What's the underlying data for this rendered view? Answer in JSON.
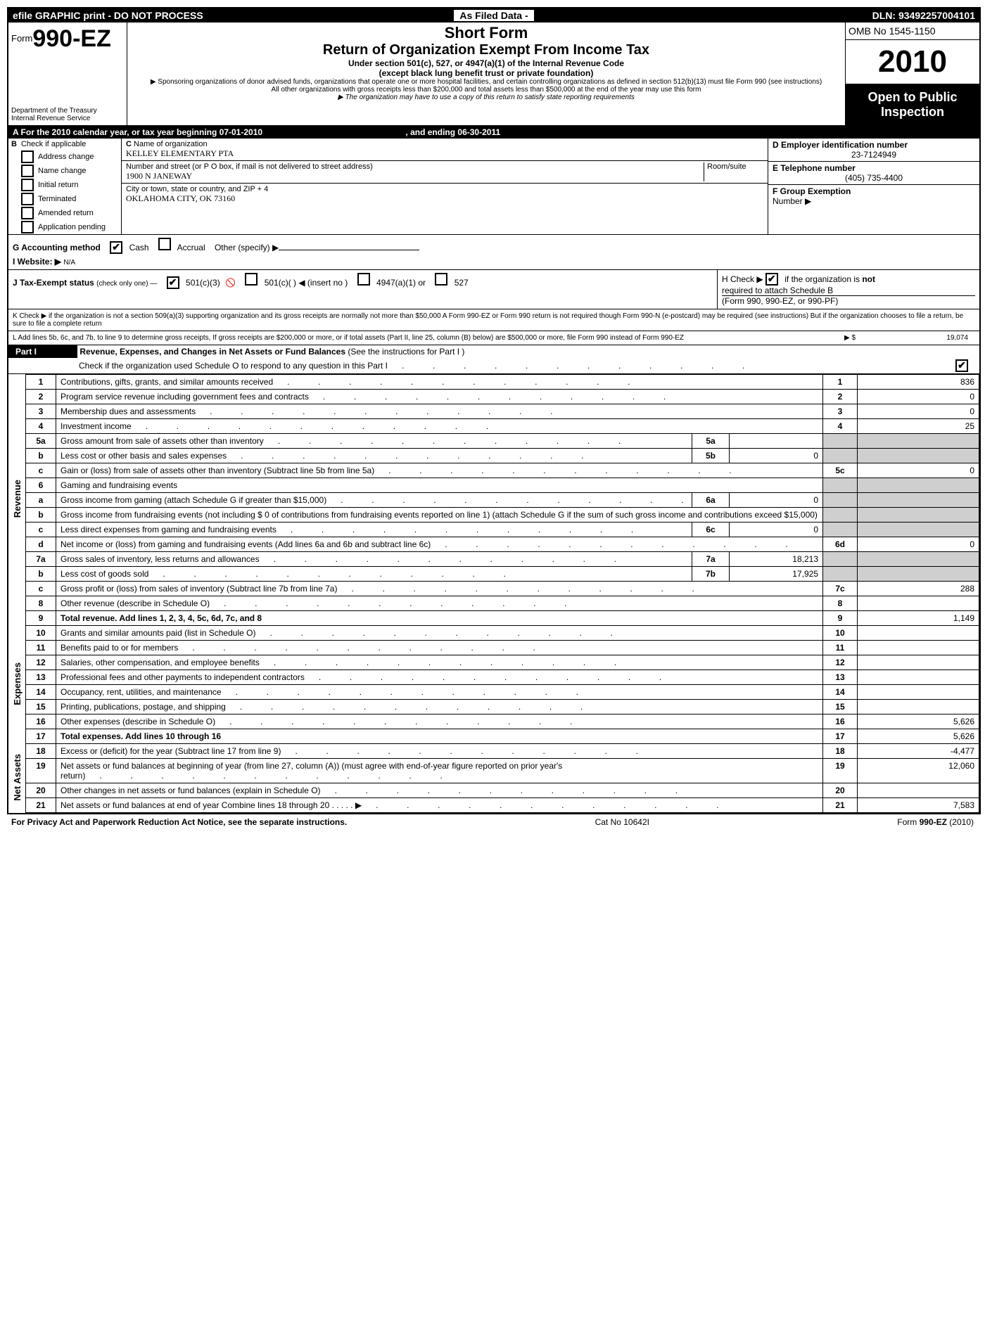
{
  "top_bar": {
    "left": "efile GRAPHIC print - DO NOT PROCESS",
    "mid": "As Filed Data -",
    "right": "DLN: 93492257004101"
  },
  "header": {
    "form_prefix": "Form",
    "form_number": "990-EZ",
    "dept1": "Department of the Treasury",
    "dept2": "Internal Revenue Service",
    "short_form": "Short Form",
    "title": "Return of Organization Exempt From Income Tax",
    "subtitle": "Under section 501(c), 527, or 4947(a)(1) of the Internal Revenue Code",
    "subtitle2": "(except black lung benefit trust or private foundation)",
    "note1": "▶ Sponsoring organizations of donor advised funds, organizations that operate one or more hospital facilities, and certain controlling organizations as defined in section 512(b)(13) must file Form 990 (see instructions)",
    "note2": "All other organizations with gross receipts less than $200,000 and total assets less than $500,000 at the end of the year may use this form",
    "note3": "▶ The organization may have to use a copy of this return to satisfy state reporting requirements",
    "omb": "OMB No  1545-1150",
    "year": "2010",
    "open1": "Open to Public",
    "open2": "Inspection"
  },
  "line_a": {
    "label": "A  For the 2010 calendar year, or tax year beginning 07-01-2010",
    "ending": ", and ending 06-30-2011"
  },
  "section_b": {
    "b_label": "B",
    "b_text": "Check if applicable",
    "opts": [
      "Address change",
      "Name change",
      "Initial return",
      "Terminated",
      "Amended return",
      "Application pending"
    ],
    "c_label": "C",
    "c_name_label": "Name of organization",
    "c_name": "KELLEY ELEMENTARY PTA",
    "c_street_label": "Number and street (or P O box, if mail is not delivered to street address)",
    "c_room_label": "Room/suite",
    "c_street": "1900 N JANEWAY",
    "c_city_label": "City or town, state or country, and ZIP + 4",
    "c_city": "OKLAHOMA CITY, OK  73160",
    "d_label": "D Employer identification number",
    "d_val": "23-7124949",
    "e_label": "E Telephone number",
    "e_val": "(405) 735-4400",
    "f_label": "F Group Exemption",
    "f_label2": "Number ▶"
  },
  "g": {
    "label": "G Accounting method",
    "cash": "Cash",
    "accrual": "Accrual",
    "other": "Other (specify) ▶"
  },
  "i": {
    "label": "I Website: ▶",
    "val": "N/A"
  },
  "j": {
    "label": "J Tax-Exempt status",
    "hint": "(check only one) —",
    "a": "501(c)(3)",
    "b": "501(c)(  ) ◀ (insert no )",
    "c": "4947(a)(1) or",
    "d": "527"
  },
  "h": {
    "line1": "H  Check ▶",
    "line1b": "if the organization is ",
    "line1c": "not",
    "line2": "required to attach Schedule B",
    "line3": "(Form 990, 990-EZ, or 990-PF)"
  },
  "k": {
    "text": "K Check ▶      if the organization is not a section 509(a)(3) supporting organization and its gross receipts are normally not more than $50,000  A Form 990-EZ or Form 990 return is not required though Form 990-N (e-postcard) may be required (see instructions)  But if the organization chooses to file a return, be sure to file a complete return"
  },
  "l": {
    "text": "L Add lines 5b, 6c, and 7b, to line 9 to determine gross receipts, If gross receipts are $200,000 or more, or if total assets (Part II, line 25, column (B) below) are $500,000 or more,    file Form 990 instead of Form 990-EZ",
    "arrow": "▶ $",
    "val": "19,074"
  },
  "part1": {
    "label": "Part I",
    "title": "Revenue, Expenses, and Changes in Net Assets or Fund Balances",
    "title_hint": "(See the instructions for Part I )",
    "sub": "Check if the organization used Schedule O to respond to any question in this Part I"
  },
  "side_labels": {
    "revenue": "Revenue",
    "expenses": "Expenses",
    "netassets": "Net Assets"
  },
  "rows": [
    {
      "n": "1",
      "d": "Contributions, gifts, grants, and similar amounts received",
      "ln": "1",
      "v": "836"
    },
    {
      "n": "2",
      "d": "Program service revenue including government fees and contracts",
      "ln": "2",
      "v": "0"
    },
    {
      "n": "3",
      "d": "Membership dues and assessments",
      "ln": "3",
      "v": "0"
    },
    {
      "n": "4",
      "d": "Investment income",
      "ln": "4",
      "v": "25"
    },
    {
      "n": "5a",
      "d": "Gross amount from sale of assets other than inventory",
      "in": "5a",
      "iv": "",
      "shade": true
    },
    {
      "n": "b",
      "d": "Less  cost or other basis and sales expenses",
      "in": "5b",
      "iv": "0",
      "shade": true
    },
    {
      "n": "c",
      "d": "Gain or (loss) from sale of assets other than inventory (Subtract line 5b from line 5a)",
      "ln": "5c",
      "v": "0"
    },
    {
      "n": "6",
      "d": "Gaming and fundraising events",
      "shade": true,
      "nolinecol": true
    },
    {
      "n": "a",
      "d": "Gross income from gaming (attach Schedule G if greater than $15,000)",
      "in": "6a",
      "iv": "0",
      "shade": true
    },
    {
      "n": "b",
      "d": "Gross income from fundraising events (not including $ 0 of contributions from fundraising events reported on line 1) (attach Schedule G if the sum of such gross income and contributions exceed $15,000)",
      "shade": true,
      "nolinecol": true
    },
    {
      "n": "c",
      "d": "Less  direct expenses from gaming and fundraising events",
      "in": "6c",
      "iv": "0",
      "shade": true
    },
    {
      "n": "d",
      "d": "Net income or (loss) from gaming and fundraising events (Add lines 6a and 6b and subtract line 6c)",
      "ln": "6d",
      "v": "0"
    },
    {
      "n": "7a",
      "d": "Gross sales of inventory, less returns and allowances",
      "in": "7a",
      "iv": "18,213",
      "shade": true
    },
    {
      "n": "b",
      "d": "Less  cost of goods sold",
      "in": "7b",
      "iv": "17,925",
      "shade": true
    },
    {
      "n": "c",
      "d": "Gross profit or (loss) from sales of inventory (Subtract line 7b from line 7a)",
      "ln": "7c",
      "v": "288"
    },
    {
      "n": "8",
      "d": "Other revenue (describe in Schedule O)",
      "ln": "8",
      "v": ""
    },
    {
      "n": "9",
      "d": "Total revenue. Add lines 1, 2, 3, 4, 5c, 6d, 7c, and 8",
      "ln": "9",
      "v": "1,149",
      "bold": true
    }
  ],
  "exp_rows": [
    {
      "n": "10",
      "d": "Grants and similar amounts paid (list in Schedule O)",
      "ln": "10",
      "v": ""
    },
    {
      "n": "11",
      "d": "Benefits paid to or for members",
      "ln": "11",
      "v": ""
    },
    {
      "n": "12",
      "d": "Salaries, other compensation, and employee benefits",
      "ln": "12",
      "v": ""
    },
    {
      "n": "13",
      "d": "Professional fees and other payments to independent contractors",
      "ln": "13",
      "v": ""
    },
    {
      "n": "14",
      "d": "Occupancy, rent, utilities, and maintenance",
      "ln": "14",
      "v": ""
    },
    {
      "n": "15",
      "d": "Printing, publications, postage, and shipping",
      "ln": "15",
      "v": ""
    },
    {
      "n": "16",
      "d": "Other expenses (describe in Schedule O)",
      "ln": "16",
      "v": "5,626"
    },
    {
      "n": "17",
      "d": "Total expenses. Add lines 10 through 16",
      "ln": "17",
      "v": "5,626",
      "bold": true
    }
  ],
  "net_rows": [
    {
      "n": "18",
      "d": "Excess or (deficit) for the year (Subtract line 17 from line 9)",
      "ln": "18",
      "v": "-4,477"
    },
    {
      "n": "19",
      "d": "Net assets or fund balances at beginning of year (from line 27, column (A)) (must agree with end-of-year figure reported on prior year's return)",
      "ln": "19",
      "v": "12,060"
    },
    {
      "n": "20",
      "d": "Other changes in net assets or fund balances (explain in Schedule O)",
      "ln": "20",
      "v": ""
    },
    {
      "n": "21",
      "d": "Net assets or fund balances at end of year  Combine lines 18 through 20       .    .    .    .    .   ▶",
      "ln": "21",
      "v": "7,583"
    }
  ],
  "footer": {
    "left": "For Privacy Act and Paperwork Reduction Act Notice, see the separate instructions.",
    "mid": "Cat No  10642I",
    "right_prefix": "Form ",
    "right_form": "990-EZ",
    "right_suffix": " (2010)"
  }
}
